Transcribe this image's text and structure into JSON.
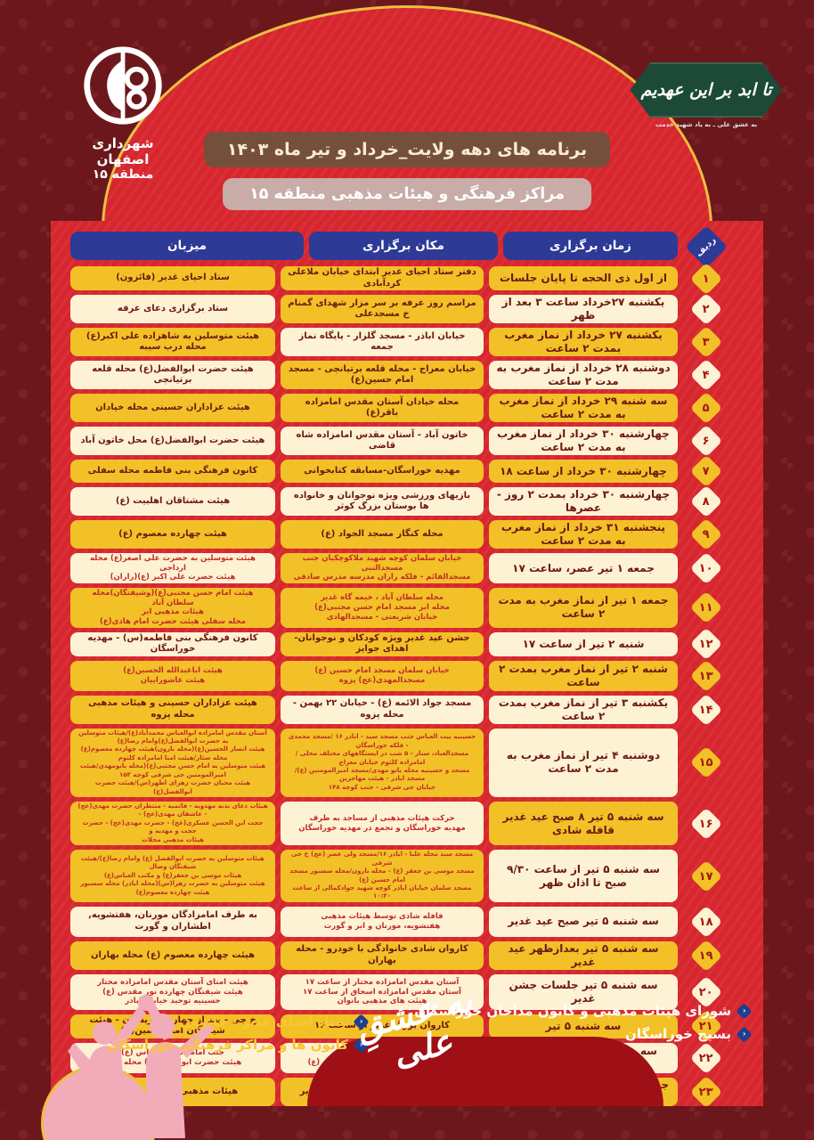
{
  "brand": {
    "line1": "شهرداری اصفهان",
    "line2": "منطقه ۱۵"
  },
  "badge": {
    "calligraphy": "تا ابد بر این عهدیم",
    "subtitle": "به عشق علی  ـ  به یاد شهید خدمت"
  },
  "header": {
    "title": "برنامه های دهه ولایت_خرداد و تیر ماه ۱۴۰۳",
    "subtitle": "مراکز فرهنگی و هیئات مذهبی منطقه ۱۵"
  },
  "colors": {
    "red": "#d7262e",
    "maroon": "#6c171c",
    "gold_cell": "#f2c127",
    "cream_cell": "#fdf2d4",
    "header_blue": "#2d3a96",
    "badge_green": "#1c4a36",
    "title_brown": "#74503c",
    "subtitle_pink": "#c7aca7",
    "accent_gold": "#eebf3f",
    "dark_text": "#6d1712",
    "small_text": "#c12b2b"
  },
  "table": {
    "headers": {
      "radif": "ردیف",
      "time": "زمان برگزاری",
      "place": "مکان برگزاری",
      "host": "میزبان"
    },
    "rows": [
      {
        "no": "۱",
        "size": 1,
        "time": {
          "t": "از اول ذی الحجه تا پایان جلسات",
          "bg": "g"
        },
        "place": {
          "t": "دفتر ستاد احیای غدیر ابتدای خیابان ملاعلی کردآبادی",
          "bg": "g",
          "sz": "n"
        },
        "host": {
          "t": "ستاد احیای غدیر (فائزون)",
          "bg": "g",
          "sz": "n"
        }
      },
      {
        "no": "۲",
        "size": 1,
        "time": {
          "t": "یکشنبه ۲۷خرداد ساعت ۳ بعد از ظهر",
          "bg": "c"
        },
        "place": {
          "t": "مراسم روز عرفه بر سر مزار شهدای گمنام خ مسجدعلی",
          "bg": "g",
          "sz": "n"
        },
        "host": {
          "t": "ستاد برگزاری دعای عرفه",
          "bg": "c",
          "sz": "n"
        }
      },
      {
        "no": "۳",
        "size": 1,
        "time": {
          "t": "یکشنبه ۲۷ خرداد از نماز مغرب بمدت ۲ ساعت",
          "bg": "g"
        },
        "place": {
          "t": "خیابان اباذر - مسجد گلزار - پایگاه نماز جمعه",
          "bg": "c",
          "sz": "n"
        },
        "host": {
          "t": "هیئت متوسلین به شاهزاده علی اکبر(ع) محله درب سیبه",
          "bg": "g",
          "sz": "n"
        }
      },
      {
        "no": "۴",
        "size": 1,
        "time": {
          "t": "دوشنبه ۲۸ خرداد از نماز مغرب به مدت ۲ ساعت",
          "bg": "c"
        },
        "place": {
          "t": "خیابان معراج - محله قلعه برتیانچی - مسجد امام حسین(ع)",
          "bg": "g",
          "sz": "n"
        },
        "host": {
          "t": "هیئت حضرت ابوالفضل(ع) محله قلعه برتیانچی",
          "bg": "c",
          "sz": "n"
        }
      },
      {
        "no": "۵",
        "size": 1,
        "time": {
          "t": "سه شنبه ۲۹ خرداد از نماز مغرب به مدت ۲ ساعت",
          "bg": "g"
        },
        "place": {
          "t": "محله خیادان آستان مقدس امامزاده باقر(ع)",
          "bg": "g",
          "sz": "n"
        },
        "host": {
          "t": "هیئت عزاداران حسینی محله خیادان",
          "bg": "g",
          "sz": "n"
        }
      },
      {
        "no": "۶",
        "size": 1,
        "time": {
          "t": "چهارشنبه ۳۰ خرداد از نماز مغرب به مدت ۲ ساعت",
          "bg": "c"
        },
        "place": {
          "t": "خاتون آباد - آستان مقدس امامزاده شاه قاضی",
          "bg": "c",
          "sz": "n"
        },
        "host": {
          "t": "هیئت حضرت ابوالفضل(ع) محل خاتون آباد",
          "bg": "c",
          "sz": "n"
        }
      },
      {
        "no": "۷",
        "size": 1,
        "time": {
          "t": "چهارشنبه ۳۰ خرداد از ساعت ۱۸",
          "bg": "g"
        },
        "place": {
          "t": "مهدیه خوراسگان-مسابقه کتابخوانی",
          "bg": "g",
          "sz": "n"
        },
        "host": {
          "t": "کانون فرهنگی بنی فاطمه محله سفلی",
          "bg": "g",
          "sz": "n"
        }
      },
      {
        "no": "۸",
        "size": 1,
        "time": {
          "t": "چهارشنبه ۳۰ خرداد بمدت ۲ روز - عصرها",
          "bg": "c"
        },
        "place": {
          "t": "بازیهای ورزشی ویژه نوجوانان و خانواده ها بوستان بزرگ کوثر",
          "bg": "c",
          "sz": "n"
        },
        "host": {
          "t": "هیئت مشتاقان اهلبیت (ع)",
          "bg": "c",
          "sz": "n"
        }
      },
      {
        "no": "۹",
        "size": 1,
        "time": {
          "t": "پنجشنبه ۳۱ خرداد از نماز مغرب به مدت ۲ ساعت",
          "bg": "g"
        },
        "place": {
          "t": "محله کنگاز مسجد الجواد (ع)",
          "bg": "g",
          "sz": "n"
        },
        "host": {
          "t": "هیئت چهارده معصوم (ع)",
          "bg": "g",
          "sz": "n"
        }
      },
      {
        "no": "۱۰",
        "size": 2,
        "time": {
          "t": "جمعه ۱ تیر عصر، ساعت ۱۷",
          "bg": "c"
        },
        "place": {
          "t": "خیابان سلمان کوچه شهید ملاکوچکیان جنب مسجدالنبی\nمسجدالقائم - فلکه راران مدرسه مدرس صادقی",
          "bg": "g",
          "sz": "s"
        },
        "host": {
          "t": "هیئت متوسلین به حضرت علی اصغر(ع) محله ارداجی\nهیئت حضرت علی اکبر (ع)(راران)",
          "bg": "c",
          "sz": "s"
        }
      },
      {
        "no": "۱۱",
        "size": 3,
        "time": {
          "t": "جمعه ۱ تیر از نماز مغرب به مدت ۲ ساعت",
          "bg": "g"
        },
        "place": {
          "t": "محله سلطان آباد ، خیمه گاه غدیر\nمحله ابر مسجد امام حسن مجتبی(ع)\nخیابان شریعتی - مسجدالهادی",
          "bg": "g",
          "sz": "s"
        },
        "host": {
          "t": "هیئت امام حسن مجتبی(ع)(وشیفتگان)محله سلطان آباد\nهیئات مذهبی ابر\nمحله سفلی هیئت حضرت امام هادی(ع)",
          "bg": "g",
          "sz": "s"
        }
      },
      {
        "no": "۱۲",
        "size": 1,
        "time": {
          "t": "شنبه ۲ تیر از ساعت ۱۷",
          "bg": "c"
        },
        "place": {
          "t": "جشن عید غدیر ویژه کودکان و نوجوانان-اهدای جوایز",
          "bg": "g",
          "sz": "n"
        },
        "host": {
          "t": "کانون فرهنگی بنی فاطمه(س) - مهدیه خوراسگان",
          "bg": "c",
          "sz": "n"
        }
      },
      {
        "no": "۱۳",
        "size": 2,
        "time": {
          "t": "شنبه ۲ تیر از نماز مغرب بمدت ۲ ساعت",
          "bg": "g"
        },
        "place": {
          "t": "خیابان سلمان مسجد امام حسین (ع)\nمسجدالمهدی(عج) پزوه",
          "bg": "g",
          "sz": "s"
        },
        "host": {
          "t": "هیئت اباعبدالله الحسین(ع)\nهیئت عاشوراییان",
          "bg": "g",
          "sz": "s"
        }
      },
      {
        "no": "۱۴",
        "size": 1,
        "time": {
          "t": "یکشنبه ۳ تیر از نماز مغرب بمدت ۲ ساعت",
          "bg": "c"
        },
        "place": {
          "t": "مسجد جواد الائمه (ع) - خیابان ۲۲ بهمن - محله پزوه",
          "bg": "c",
          "sz": "n"
        },
        "host": {
          "t": "هیئت عزاداران حسینی و هیئات مذهبی محله پزوه",
          "bg": "g",
          "sz": "n"
        }
      },
      {
        "no": "۱۵",
        "size": 5,
        "time": {
          "t": "دوشنبه ۴ تیر از نماز مغرب به مدت ۲ ساعت",
          "bg": "c"
        },
        "place": {
          "t": "حسینیه بیت العباس جنب مسجد سید - اباذر ۱۶ /مسجد محمدی - فلکه خوراسگان\nمسجدالعباد، سنار - ۵ شب در ایستگاههای مختلف محلی / امامزاده کلثوم خیابان معراج\nمسجد و حسینیه محله بانو مهدی/مسجد امیرالمومنین (ع)/مسجد اباذر - هیئت مهاجرین\nخیابان جی شرقی - جنب کوچه ۱۴۸",
          "bg": "g",
          "sz": "xs"
        },
        "host": {
          "t": "آستان مقدس امامزاده ابوالعباس محمدآباد(ع)/هیئات متوسلین به حضرت ابوالفضل(ع)وامام رضا(ع)\nهیئت انصار الحسین(ع)(محله نارون)هیئت چهارده معصوم(ع) محله سئار/هیئت امنا امامزاده کلثوم\nهیئت متوسلین به امام حسن مجتبی(ع)(محله بانومهدی/هیئت امیرالمومنین جی شرقی کوچه ۱۵۳\nهیئت محبان حضرت زهرای اطهر(س)/هیئت حضرت ابوالفضل(ع)",
          "bg": "g",
          "sz": "xs"
        }
      },
      {
        "no": "۱۶",
        "size": 3,
        "time": {
          "t": "سه شنبه ۵ تیر ۸ صبح عید غدیر قافله شادی",
          "bg": "g"
        },
        "place": {
          "t": "حرکت هیئات مذهبی از مساجد به طرف\nمهدیه خوراسگان و تجمع در مهدیه خوراسگان",
          "bg": "c",
          "sz": "s"
        },
        "host": {
          "t": "هیئات دعای ندبه مهدویه - فاتمیه - منتظران حضرت مهدی(عج) - عاشقان مهدی(عج) -\nحجت ابن الحسن عسکری(عج) - حضرت مهدی(عج) - حضرت حجت و مهدیه و\nهیئات مذهبی محلات",
          "bg": "g",
          "sz": "xs"
        }
      },
      {
        "no": "۱۷",
        "size": 4,
        "time": {
          "t": "سه شنبه ۵ تیر از ساعت ۹/۳۰ صبح تا اذان ظهر",
          "bg": "c"
        },
        "place": {
          "t": "مسجد سید محله علیا - اباذر ۱۶/مسجد ولی عصر (عج) خ جی شرقی\nمسجد موسی بن جعفر (ع) - محله نارون/محله سسبور مسجد امام حسین (ع)\nمسجد سلمان خیابان اباذر کوچه شهید جوادکمالی از ساعت ۱۰:۳۰",
          "bg": "g",
          "sz": "xs"
        },
        "host": {
          "t": "هیئات متوسلین به حضرت ابوالفضل (ع) وامام رضا(ع)/هیئت شیفتگان وصال\nهیئات موسی بن جعفر(ع) و مکتب العباس(ع)\nهیئت متوسلین به حضرت زهرا(س)(محله اباذر) محله سسبور هیئت چهارده معصوم(ع)",
          "bg": "g",
          "sz": "xs"
        }
      },
      {
        "no": "۱۸",
        "size": 2,
        "time": {
          "t": "سه شنبه ۵ تیر صبح عید غدیر",
          "bg": "c"
        },
        "place": {
          "t": "قافله شادی توسط هیئات مذهبی\nهفتشویه، مورنان و ابر و گورت",
          "bg": "c",
          "sz": "s"
        },
        "host": {
          "t": "به طرف امامزادگان مورنان، هفتشویه, اطشاران و گورت",
          "bg": "c",
          "sz": "n"
        }
      },
      {
        "no": "۱۹",
        "size": 1,
        "time": {
          "t": "سه شنبه ۵ تیر بعدازظهر عید غدیر",
          "bg": "g"
        },
        "place": {
          "t": "کاروان شادی خانوادگی با خودرو - محله بهاران",
          "bg": "g",
          "sz": "n"
        },
        "host": {
          "t": "هیئت چهارده معصوم (ع) محله بهاران",
          "bg": "g",
          "sz": "n"
        }
      },
      {
        "no": "۲۰",
        "size": 3,
        "time": {
          "t": "سه شنبه ۵ تیر جلسات جشن غدیر",
          "bg": "c"
        },
        "place": {
          "t": "آستان مقدس امامزاده مختار از ساعت ۱۷\nآستان مقدس امامزاده اسحاق از ساعت ۱۷\nهیئت های مذهبی بانوان",
          "bg": "c",
          "sz": "s"
        },
        "host": {
          "t": "هیئت امنای آستان مقدس امامزاده مختار\nهیئت شیفتگان چهارده نور مقدس (ع)\nحسینیه توحید خیابان اباذر",
          "bg": "c",
          "sz": "s"
        }
      },
      {
        "no": "۲۱",
        "size": 1,
        "time": {
          "t": "سه شنبه ۵ تیر",
          "bg": "g"
        },
        "place": {
          "t": "کاروان بزرگ غدیر از ساعت ۱۶",
          "bg": "g",
          "sz": "n"
        },
        "host": {
          "t": "خ جی - بعد از چهارراه اریسون - هیئت شیفتگان امام حسین(ع)",
          "bg": "g",
          "sz": "n"
        }
      },
      {
        "no": "۲۲",
        "size": 2,
        "time": {
          "t": "سه شنبه ۵ تیر از نماز مغرب بمدت ۲ ساعت",
          "bg": "c"
        },
        "place": {
          "t": "مسجد القائم محله سفلی\nمحله قصر - مسجد حضرت ابوالفضل (ع)",
          "bg": "c",
          "sz": "s"
        },
        "host": {
          "t": "جنب امامزاده ابوالعباس (ع)\nهیئت حضرت ابوالفضل(ع) محله قصر",
          "bg": "c",
          "sz": "s"
        }
      },
      {
        "no": "۲۳",
        "size": 1,
        "time": {
          "t": "جشن اختتامیه غدیر جمعه از نماز مغرب بمدت دو ساعت",
          "bg": "g"
        },
        "place": {
          "t": "مسجد علی(ع) - اختتامیه جلسات غدیر",
          "bg": "g",
          "sz": "n"
        },
        "host": {
          "t": "هیئات مذهبی محله مسجدعلی",
          "bg": "g",
          "sz": "n"
        }
      }
    ]
  },
  "footer": {
    "right_items": [
      "شورای هیئات مذهبی و کانون مداحان خوراسگان",
      "بسیج خوراسگان"
    ],
    "left_items": [
      "ستاد احیای غدیر - فائزون",
      "کانون ها و مراکز فرهنگی خوراسگان"
    ],
    "calligraphy": "به عشقِ علی"
  }
}
